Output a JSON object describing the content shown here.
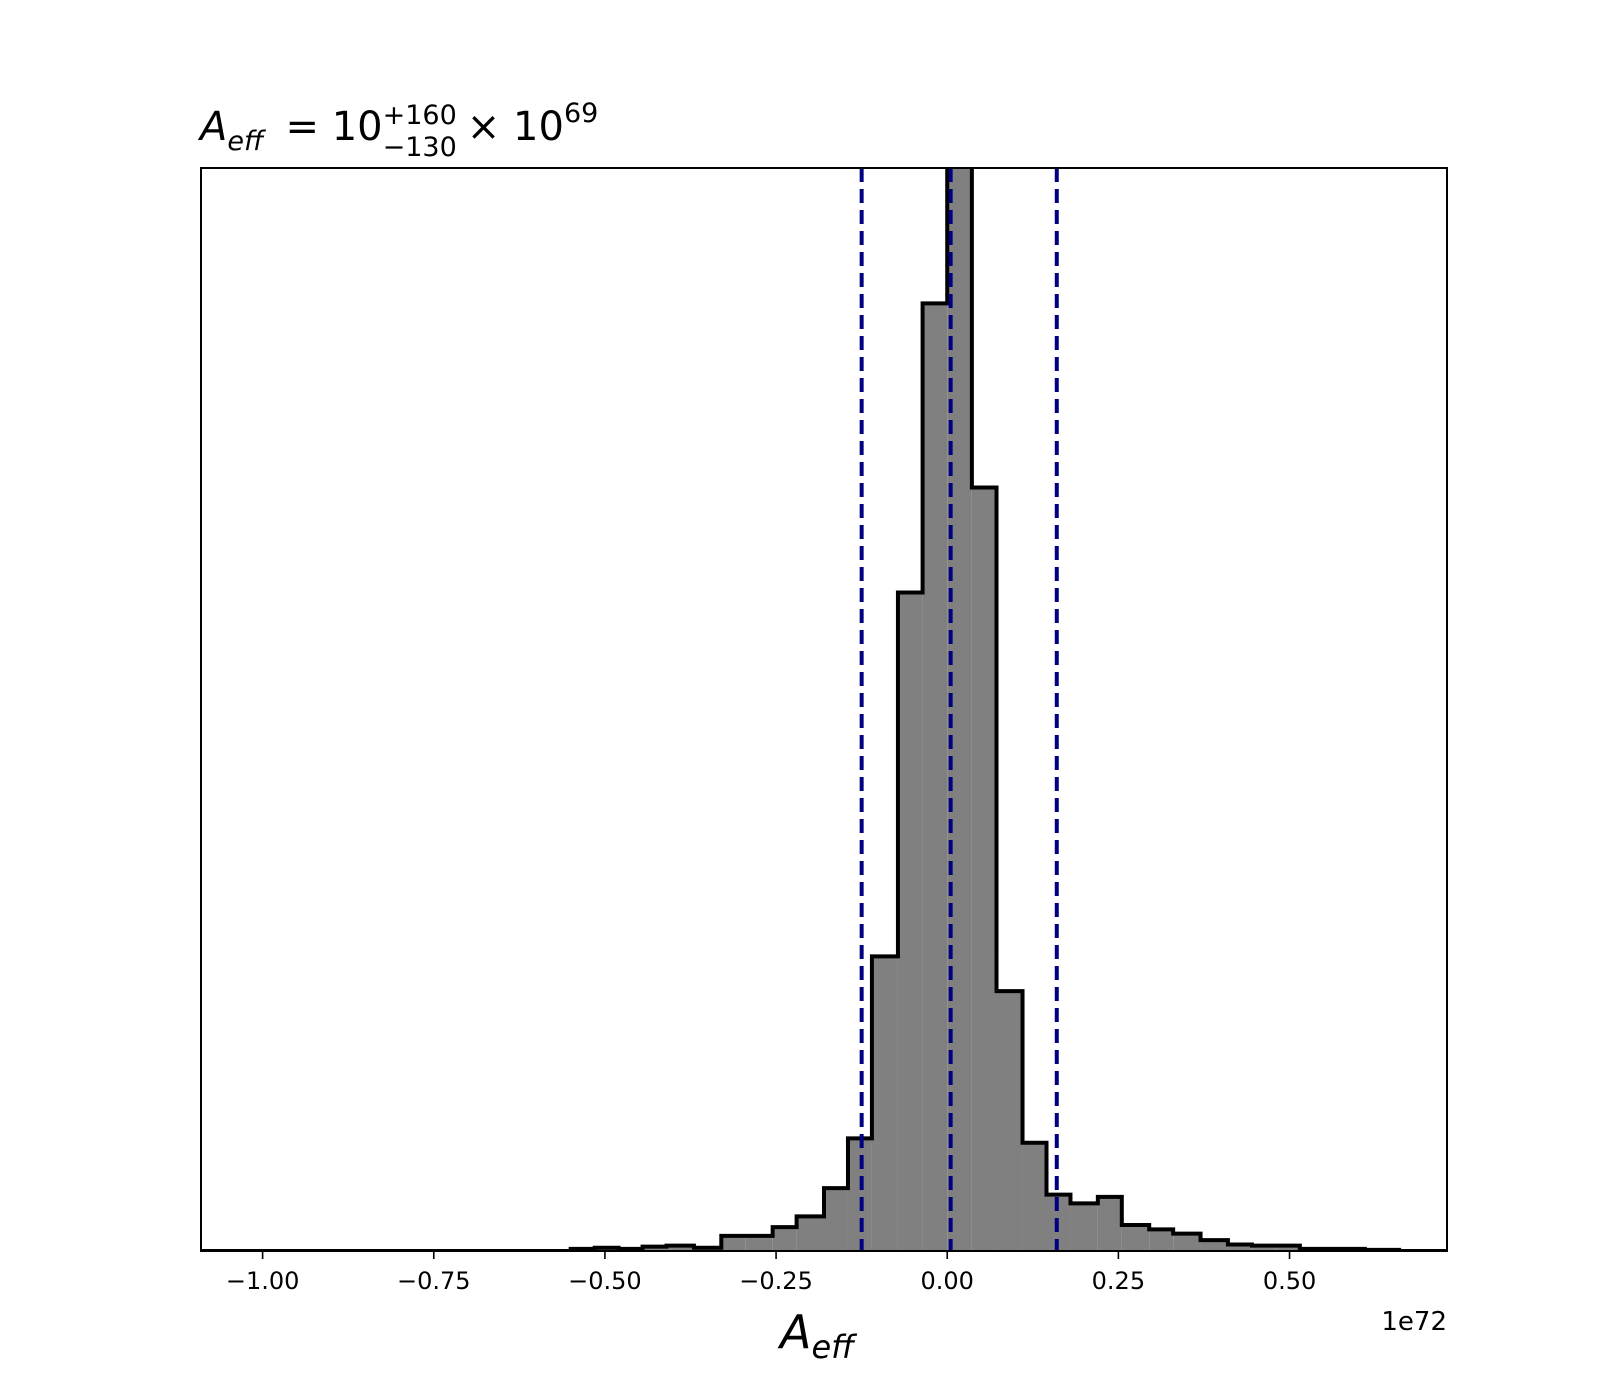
{
  "chart_data": {
    "type": "bar",
    "title": {
      "symbol": "A",
      "symbol_sub": "eff",
      "eq": "= 10",
      "sup": "+160",
      "sub": "−130",
      "times": "× 10",
      "exp": "69"
    },
    "xlabel": {
      "symbol": "A",
      "sub": "eff"
    },
    "x_offset_text": "1e72",
    "xlim": [
      -1.09,
      0.73
    ],
    "ylim": [
      0,
      1.0
    ],
    "x_ticks": [
      -1.0,
      -0.75,
      -0.5,
      -0.25,
      0.0,
      0.25,
      0.5
    ],
    "x_tick_labels": [
      "−1.00",
      "−0.75",
      "−0.50",
      "−0.25",
      "0.00",
      "0.25",
      "0.50"
    ],
    "bin_edges": [
      -1.09,
      -0.55,
      -0.515,
      -0.48,
      -0.445,
      -0.41,
      -0.37,
      -0.33,
      -0.295,
      -0.255,
      -0.22,
      -0.18,
      -0.145,
      -0.11,
      -0.072,
      -0.036,
      0.0,
      0.036,
      0.072,
      0.11,
      0.145,
      0.18,
      0.22,
      0.255,
      0.295,
      0.33,
      0.37,
      0.41,
      0.445,
      0.48,
      0.515,
      0.55,
      0.61,
      0.66,
      0.73
    ],
    "counts": [
      0.0,
      0.002,
      0.003,
      0.002,
      0.004,
      0.005,
      0.003,
      0.014,
      0.014,
      0.022,
      0.032,
      0.058,
      0.104,
      0.272,
      0.608,
      0.875,
      1.05,
      0.705,
      0.24,
      0.1,
      0.052,
      0.044,
      0.05,
      0.024,
      0.02,
      0.016,
      0.01,
      0.006,
      0.005,
      0.005,
      0.002,
      0.002,
      0.001,
      0.0
    ],
    "vlines": [
      -0.125,
      0.005,
      0.16
    ],
    "colors": {
      "fill": "#808080",
      "edge": "#000000",
      "vline": "#000080"
    },
    "grid": false,
    "y_ticks_shown": false
  }
}
